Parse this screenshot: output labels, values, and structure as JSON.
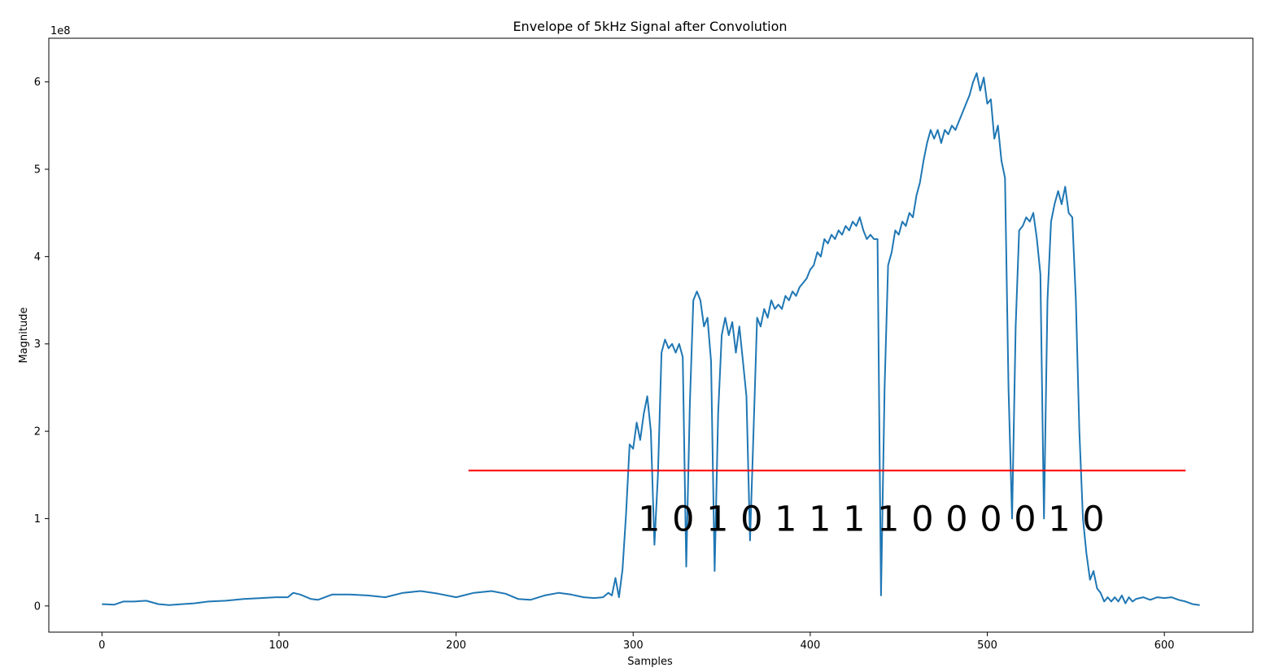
{
  "chart_data": {
    "type": "line",
    "title": "Envelope of 5kHz Signal after Convolution",
    "xlabel": "Samples",
    "ylabel": "Magnitude",
    "y_offset_label": "1e8",
    "xlim": [
      -30,
      650
    ],
    "ylim": [
      -0.3,
      6.5
    ],
    "x_ticks": [
      0,
      100,
      200,
      300,
      400,
      500,
      600
    ],
    "x_tick_labels": [
      "0",
      "100",
      "200",
      "300",
      "400",
      "500",
      "600"
    ],
    "y_ticks": [
      0,
      1,
      2,
      3,
      4,
      5,
      6
    ],
    "y_tick_labels": [
      "0",
      "1",
      "2",
      "3",
      "4",
      "5",
      "6"
    ],
    "grid": false,
    "series": [
      {
        "color": "#1f77b4",
        "points": [
          [
            0,
            0.02
          ],
          [
            7,
            0.015
          ],
          [
            12,
            0.05
          ],
          [
            18,
            0.05
          ],
          [
            25,
            0.06
          ],
          [
            32,
            0.02
          ],
          [
            38,
            0.01
          ],
          [
            45,
            0.02
          ],
          [
            52,
            0.03
          ],
          [
            60,
            0.05
          ],
          [
            70,
            0.06
          ],
          [
            80,
            0.08
          ],
          [
            90,
            0.09
          ],
          [
            98,
            0.1
          ],
          [
            105,
            0.1
          ],
          [
            108,
            0.15
          ],
          [
            112,
            0.13
          ],
          [
            118,
            0.08
          ],
          [
            122,
            0.07
          ],
          [
            130,
            0.13
          ],
          [
            140,
            0.13
          ],
          [
            150,
            0.12
          ],
          [
            160,
            0.1
          ],
          [
            170,
            0.15
          ],
          [
            180,
            0.17
          ],
          [
            190,
            0.14
          ],
          [
            200,
            0.1
          ],
          [
            210,
            0.15
          ],
          [
            220,
            0.17
          ],
          [
            228,
            0.14
          ],
          [
            235,
            0.08
          ],
          [
            242,
            0.07
          ],
          [
            250,
            0.12
          ],
          [
            258,
            0.15
          ],
          [
            265,
            0.13
          ],
          [
            272,
            0.1
          ],
          [
            278,
            0.09
          ],
          [
            283,
            0.1
          ],
          [
            286,
            0.15
          ],
          [
            288,
            0.12
          ],
          [
            290,
            0.32
          ],
          [
            292,
            0.1
          ],
          [
            294,
            0.42
          ],
          [
            296,
            1.05
          ],
          [
            298,
            1.85
          ],
          [
            300,
            1.8
          ],
          [
            302,
            2.1
          ],
          [
            304,
            1.9
          ],
          [
            306,
            2.2
          ],
          [
            308,
            2.4
          ],
          [
            310,
            2.0
          ],
          [
            312,
            0.7
          ],
          [
            314,
            1.5
          ],
          [
            316,
            2.9
          ],
          [
            318,
            3.05
          ],
          [
            320,
            2.95
          ],
          [
            322,
            3.0
          ],
          [
            324,
            2.9
          ],
          [
            326,
            3.0
          ],
          [
            328,
            2.85
          ],
          [
            330,
            0.45
          ],
          [
            332,
            2.3
          ],
          [
            334,
            3.5
          ],
          [
            336,
            3.6
          ],
          [
            338,
            3.5
          ],
          [
            340,
            3.2
          ],
          [
            342,
            3.3
          ],
          [
            344,
            2.8
          ],
          [
            346,
            0.4
          ],
          [
            348,
            2.2
          ],
          [
            350,
            3.1
          ],
          [
            352,
            3.3
          ],
          [
            354,
            3.1
          ],
          [
            356,
            3.25
          ],
          [
            358,
            2.9
          ],
          [
            360,
            3.2
          ],
          [
            362,
            2.8
          ],
          [
            364,
            2.4
          ],
          [
            366,
            0.75
          ],
          [
            368,
            2.0
          ],
          [
            370,
            3.3
          ],
          [
            372,
            3.2
          ],
          [
            374,
            3.4
          ],
          [
            376,
            3.3
          ],
          [
            378,
            3.5
          ],
          [
            380,
            3.4
          ],
          [
            382,
            3.45
          ],
          [
            384,
            3.4
          ],
          [
            386,
            3.55
          ],
          [
            388,
            3.5
          ],
          [
            390,
            3.6
          ],
          [
            392,
            3.55
          ],
          [
            394,
            3.65
          ],
          [
            396,
            3.7
          ],
          [
            398,
            3.75
          ],
          [
            400,
            3.85
          ],
          [
            402,
            3.9
          ],
          [
            404,
            4.05
          ],
          [
            406,
            4.0
          ],
          [
            408,
            4.2
          ],
          [
            410,
            4.15
          ],
          [
            412,
            4.25
          ],
          [
            414,
            4.2
          ],
          [
            416,
            4.3
          ],
          [
            418,
            4.25
          ],
          [
            420,
            4.35
          ],
          [
            422,
            4.3
          ],
          [
            424,
            4.4
          ],
          [
            426,
            4.35
          ],
          [
            428,
            4.45
          ],
          [
            430,
            4.3
          ],
          [
            432,
            4.2
          ],
          [
            434,
            4.25
          ],
          [
            436,
            4.2
          ],
          [
            438,
            4.2
          ],
          [
            440,
            0.12
          ],
          [
            442,
            2.5
          ],
          [
            444,
            3.9
          ],
          [
            446,
            4.05
          ],
          [
            448,
            4.3
          ],
          [
            450,
            4.25
          ],
          [
            452,
            4.4
          ],
          [
            454,
            4.35
          ],
          [
            456,
            4.5
          ],
          [
            458,
            4.45
          ],
          [
            460,
            4.7
          ],
          [
            462,
            4.85
          ],
          [
            464,
            5.1
          ],
          [
            466,
            5.3
          ],
          [
            468,
            5.45
          ],
          [
            470,
            5.35
          ],
          [
            472,
            5.45
          ],
          [
            474,
            5.3
          ],
          [
            476,
            5.45
          ],
          [
            478,
            5.4
          ],
          [
            480,
            5.5
          ],
          [
            482,
            5.45
          ],
          [
            484,
            5.55
          ],
          [
            486,
            5.65
          ],
          [
            488,
            5.75
          ],
          [
            490,
            5.85
          ],
          [
            492,
            6.0
          ],
          [
            494,
            6.1
          ],
          [
            496,
            5.9
          ],
          [
            498,
            6.05
          ],
          [
            500,
            5.75
          ],
          [
            502,
            5.8
          ],
          [
            504,
            5.35
          ],
          [
            506,
            5.5
          ],
          [
            508,
            5.1
          ],
          [
            510,
            4.9
          ],
          [
            512,
            2.5
          ],
          [
            514,
            1.0
          ],
          [
            516,
            3.2
          ],
          [
            518,
            4.3
          ],
          [
            520,
            4.35
          ],
          [
            522,
            4.45
          ],
          [
            524,
            4.4
          ],
          [
            526,
            4.5
          ],
          [
            528,
            4.2
          ],
          [
            530,
            3.8
          ],
          [
            532,
            1.0
          ],
          [
            534,
            3.5
          ],
          [
            536,
            4.4
          ],
          [
            538,
            4.6
          ],
          [
            540,
            4.75
          ],
          [
            542,
            4.6
          ],
          [
            544,
            4.8
          ],
          [
            546,
            4.5
          ],
          [
            548,
            4.45
          ],
          [
            550,
            3.5
          ],
          [
            552,
            2.0
          ],
          [
            554,
            1.0
          ],
          [
            556,
            0.6
          ],
          [
            558,
            0.3
          ],
          [
            560,
            0.4
          ],
          [
            562,
            0.2
          ],
          [
            564,
            0.15
          ],
          [
            566,
            0.05
          ],
          [
            568,
            0.1
          ],
          [
            570,
            0.05
          ],
          [
            572,
            0.1
          ],
          [
            574,
            0.05
          ],
          [
            576,
            0.12
          ],
          [
            578,
            0.03
          ],
          [
            580,
            0.1
          ],
          [
            582,
            0.05
          ],
          [
            584,
            0.08
          ],
          [
            588,
            0.1
          ],
          [
            592,
            0.07
          ],
          [
            596,
            0.1
          ],
          [
            600,
            0.09
          ],
          [
            604,
            0.1
          ],
          [
            608,
            0.07
          ],
          [
            612,
            0.05
          ],
          [
            616,
            0.02
          ],
          [
            620,
            0.01
          ]
        ]
      }
    ],
    "threshold_line": {
      "color": "#ff0000",
      "x": [
        207,
        612
      ],
      "y": 1.55
    },
    "bit_labels": {
      "text": [
        "1",
        "0",
        "1",
        "0",
        "1",
        "1",
        "1",
        "1",
        "0",
        "0",
        "0",
        "0",
        "1",
        "0"
      ],
      "x_start": 309,
      "x_step": 19.3,
      "y": 1.0
    }
  }
}
